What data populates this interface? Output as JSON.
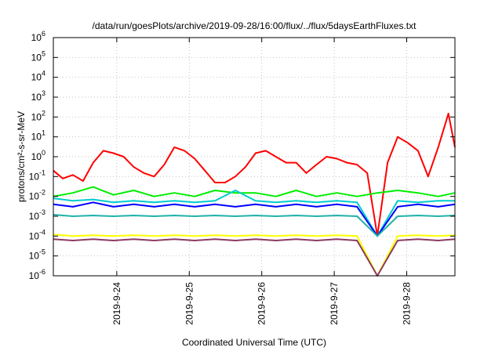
{
  "chart_data": {
    "type": "line",
    "title": "/data/run/goesPlots/archive/2019-09-28/16:00/flux/../flux/5daysEarthFluxes.txt",
    "xlabel": "Coordinated Universal Time (UTC)",
    "ylabel": "protons/cm²-s-sr-MeV",
    "y_scale": "log",
    "ylim": [
      1e-06,
      1000000.0
    ],
    "y_ticks": [
      {
        "value": 1e-06,
        "base": "10",
        "exp": "-6"
      },
      {
        "value": 1e-05,
        "base": "10",
        "exp": "-5"
      },
      {
        "value": 0.0001,
        "base": "10",
        "exp": "-4"
      },
      {
        "value": 0.001,
        "base": "10",
        "exp": "-3"
      },
      {
        "value": 0.01,
        "base": "10",
        "exp": "-2"
      },
      {
        "value": 0.1,
        "base": "10",
        "exp": "-1"
      },
      {
        "value": 1,
        "base": "10",
        "exp": "0"
      },
      {
        "value": 10,
        "base": "10",
        "exp": "1"
      },
      {
        "value": 100,
        "base": "10",
        "exp": "2"
      },
      {
        "value": 1000,
        "base": "10",
        "exp": "3"
      },
      {
        "value": 10000.0,
        "base": "10",
        "exp": "4"
      },
      {
        "value": 100000.0,
        "base": "10",
        "exp": "5"
      },
      {
        "value": 1000000.0,
        "base": "10",
        "exp": "6"
      }
    ],
    "x_range_days": [
      "2019-09-23 03:00",
      "2019-09-28 16:00"
    ],
    "x_ticks": [
      "2019-9-24",
      "2019-9-25",
      "2019-9-26",
      "2019-9-27",
      "2019-9-28"
    ],
    "grid": true,
    "legend": "none",
    "series": [
      {
        "color": "#ff0000",
        "x": [
          0.0,
          0.13,
          0.27,
          0.41,
          0.55,
          0.69,
          0.83,
          0.97,
          1.11,
          1.25,
          1.39,
          1.53,
          1.67,
          1.81,
          1.95,
          2.09,
          2.23,
          2.37,
          2.51,
          2.65,
          2.79,
          2.93,
          3.07,
          3.21,
          3.35,
          3.49,
          3.63,
          3.77,
          3.91,
          4.05,
          4.19,
          4.33,
          4.47,
          4.61,
          4.75,
          4.89,
          5.03,
          5.17,
          5.31,
          5.45,
          5.54
        ],
        "y": [
          0.2,
          0.08,
          0.12,
          0.06,
          0.5,
          2.0,
          1.5,
          1.0,
          0.3,
          0.15,
          0.1,
          0.4,
          3.0,
          2.0,
          0.8,
          0.2,
          0.05,
          0.05,
          0.1,
          0.3,
          1.5,
          2.0,
          1.0,
          0.5,
          0.5,
          0.15,
          0.4,
          1.0,
          0.8,
          0.5,
          0.4,
          0.15,
          0.0001,
          0.5,
          10.0,
          5.0,
          2.0,
          0.1,
          3.0,
          150.0,
          3.0
        ]
      },
      {
        "color": "#00ee00",
        "x": [
          0.0,
          0.27,
          0.55,
          0.83,
          1.11,
          1.39,
          1.67,
          1.95,
          2.23,
          2.51,
          2.79,
          3.07,
          3.35,
          3.63,
          3.91,
          4.19,
          4.47,
          4.75,
          5.03,
          5.31,
          5.54
        ],
        "y": [
          0.01,
          0.015,
          0.03,
          0.012,
          0.02,
          0.01,
          0.015,
          0.01,
          0.02,
          0.015,
          0.015,
          0.01,
          0.02,
          0.01,
          0.015,
          0.01,
          0.015,
          0.02,
          0.015,
          0.01,
          0.015
        ]
      },
      {
        "color": "#00cccc",
        "x": [
          0.0,
          0.27,
          0.55,
          0.83,
          1.11,
          1.39,
          1.67,
          1.95,
          2.23,
          2.51,
          2.79,
          3.07,
          3.35,
          3.63,
          3.91,
          4.19,
          4.47,
          4.75,
          5.03,
          5.31,
          5.54
        ],
        "y": [
          0.008,
          0.006,
          0.007,
          0.005,
          0.006,
          0.005,
          0.006,
          0.005,
          0.006,
          0.02,
          0.006,
          0.005,
          0.006,
          0.005,
          0.006,
          0.005,
          0.0001,
          0.006,
          0.005,
          0.006,
          0.006
        ]
      },
      {
        "color": "#0000ff",
        "x": [
          0.0,
          0.27,
          0.55,
          0.83,
          1.11,
          1.39,
          1.67,
          1.95,
          2.23,
          2.51,
          2.79,
          3.07,
          3.35,
          3.63,
          3.91,
          4.19,
          4.47,
          4.75,
          5.03,
          5.31,
          5.54
        ],
        "y": [
          0.004,
          0.003,
          0.005,
          0.003,
          0.004,
          0.003,
          0.004,
          0.003,
          0.004,
          0.003,
          0.004,
          0.003,
          0.004,
          0.003,
          0.004,
          0.003,
          0.0001,
          0.003,
          0.004,
          0.003,
          0.004
        ]
      },
      {
        "color": "#20b2aa",
        "x": [
          0.0,
          0.27,
          0.55,
          0.83,
          1.11,
          1.39,
          1.67,
          1.95,
          2.23,
          2.51,
          2.79,
          3.07,
          3.35,
          3.63,
          3.91,
          4.19,
          4.47,
          4.75,
          5.03,
          5.31,
          5.54
        ],
        "y": [
          0.0012,
          0.001,
          0.0011,
          0.001,
          0.0011,
          0.001,
          0.0011,
          0.001,
          0.0011,
          0.001,
          0.0011,
          0.001,
          0.0011,
          0.001,
          0.0011,
          0.001,
          0.0001,
          0.001,
          0.0011,
          0.001,
          0.0011
        ]
      },
      {
        "color": "#ffff00",
        "x": [
          0.0,
          0.27,
          0.55,
          0.83,
          1.11,
          1.39,
          1.67,
          1.95,
          2.23,
          2.51,
          2.79,
          3.07,
          3.35,
          3.63,
          3.91,
          4.19,
          4.47,
          4.75,
          5.03,
          5.31,
          5.54
        ],
        "y": [
          0.00012,
          0.0001,
          0.00011,
          0.0001,
          0.00011,
          0.0001,
          0.00011,
          0.0001,
          0.00011,
          0.0001,
          0.00011,
          0.0001,
          0.00011,
          0.0001,
          0.00011,
          0.0001,
          1e-06,
          0.0001,
          0.00011,
          0.0001,
          0.00011
        ]
      },
      {
        "color": "#8b3a62",
        "x": [
          0.0,
          0.27,
          0.55,
          0.83,
          1.11,
          1.39,
          1.67,
          1.95,
          2.23,
          2.51,
          2.79,
          3.07,
          3.35,
          3.63,
          3.91,
          4.19,
          4.47,
          4.75,
          5.03,
          5.31,
          5.54
        ],
        "y": [
          7e-05,
          6e-05,
          7e-05,
          6e-05,
          7e-05,
          6e-05,
          7e-05,
          6e-05,
          7e-05,
          6e-05,
          7e-05,
          6e-05,
          7e-05,
          6e-05,
          7e-05,
          6e-05,
          1e-06,
          6e-05,
          7e-05,
          6e-05,
          7e-05
        ]
      }
    ]
  }
}
